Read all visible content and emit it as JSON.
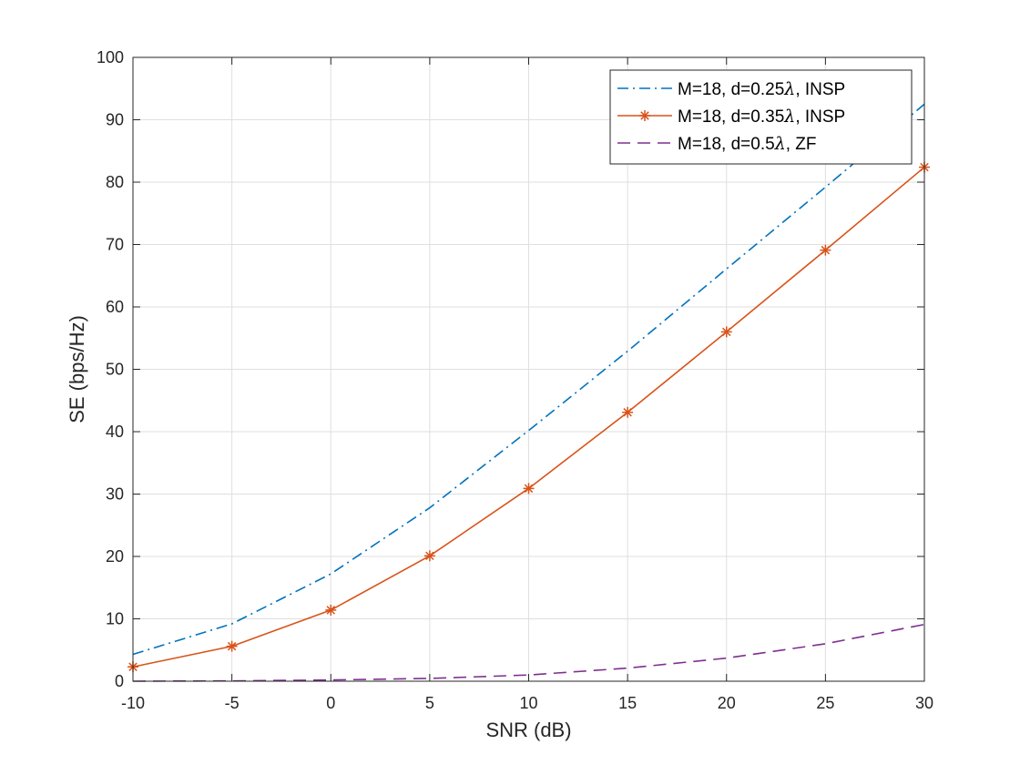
{
  "chart_data": {
    "type": "line",
    "title": "",
    "xlabel": "SNR (dB)",
    "ylabel": "SE (bps/Hz)",
    "xlim": [
      -10,
      30
    ],
    "ylim": [
      0,
      100
    ],
    "grid": true,
    "legend_position": "top-right",
    "x": [
      -10,
      -5,
      0,
      5,
      10,
      15,
      20,
      25,
      30
    ],
    "x_ticks": [
      -10,
      -5,
      0,
      5,
      10,
      15,
      20,
      25,
      30
    ],
    "y_ticks": [
      0,
      10,
      20,
      30,
      40,
      50,
      60,
      70,
      80,
      90,
      100
    ],
    "series": [
      {
        "name": "M=18, d=0.25λ, INSP",
        "legend_prefix": "M=18, d=0.25",
        "legend_suffix": ", INSP",
        "values": [
          4.3,
          9.2,
          17.2,
          27.8,
          40.2,
          52.9,
          66.1,
          79.2,
          92.5
        ],
        "color": "#0072BD",
        "style": "dash-dot",
        "marker": "none"
      },
      {
        "name": "M=18, d=0.35λ, INSP",
        "legend_prefix": "M=18, d=0.35",
        "legend_suffix": ", INSP",
        "values": [
          2.3,
          5.6,
          11.4,
          20.1,
          30.9,
          43.1,
          56.0,
          69.1,
          82.4
        ],
        "color": "#D95319",
        "style": "solid",
        "marker": "asterisk"
      },
      {
        "name": "M=18, d=0.5λ, ZF",
        "legend_prefix": "M=18, d=0.5",
        "legend_suffix": ", ZF",
        "values": [
          0.0,
          0.05,
          0.2,
          0.45,
          1.0,
          2.1,
          3.7,
          6.0,
          9.1
        ],
        "color": "#7E2F8E",
        "style": "dashed",
        "marker": "none"
      }
    ]
  }
}
